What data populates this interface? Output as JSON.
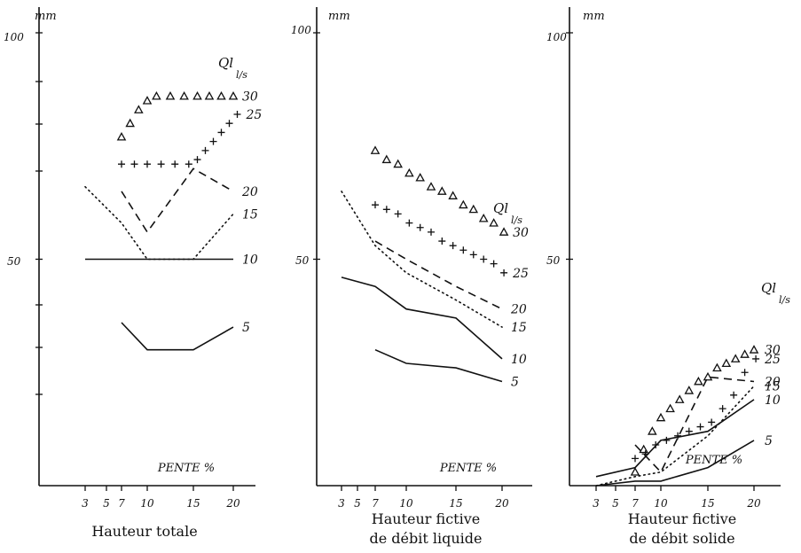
{
  "chart_data": [
    {
      "type": "line",
      "title": "Hauteur totale",
      "ylabel": "mm",
      "xlabel": "PENTE %",
      "legend_title": "Ql l/s",
      "x_ticks": [
        3,
        5,
        7,
        10,
        15,
        20
      ],
      "ylim": [
        0,
        100
      ],
      "y_tick_labels": [
        "100",
        "50"
      ],
      "y_tick_values": [
        100,
        50
      ],
      "series": [
        {
          "name": "30",
          "marker": "triangle",
          "style": "markers",
          "x": [
            7,
            8,
            9,
            10,
            11,
            12.5,
            14,
            15.5,
            17,
            18.5,
            20
          ],
          "y": [
            77,
            80,
            83,
            85,
            86,
            86,
            86,
            86,
            86,
            86,
            86
          ]
        },
        {
          "name": "25",
          "marker": "plus",
          "style": "markers",
          "x": [
            7,
            8.5,
            10,
            11.5,
            13,
            14.5,
            15.5,
            16.5,
            17.5,
            18.5,
            19.5,
            20.5
          ],
          "y": [
            71,
            71,
            71,
            71,
            71,
            71,
            72,
            74,
            76,
            78,
            80,
            82
          ]
        },
        {
          "name": "20",
          "style": "dashed",
          "x": [
            7,
            10,
            15,
            20
          ],
          "y": [
            65,
            56,
            70,
            65
          ]
        },
        {
          "name": "15",
          "style": "dotted",
          "x": [
            3,
            7,
            10,
            15,
            20
          ],
          "y": [
            66,
            58,
            50,
            50,
            60
          ]
        },
        {
          "name": "10",
          "style": "solid",
          "x": [
            3,
            7,
            10,
            15,
            20
          ],
          "y": [
            50,
            50,
            50,
            50,
            50
          ]
        },
        {
          "name": "5",
          "style": "solid",
          "x": [
            7,
            10,
            15,
            20
          ],
          "y": [
            36,
            30,
            30,
            35
          ]
        }
      ]
    },
    {
      "type": "line",
      "title": "Hauteur fictive de débit liquide",
      "ylabel": "mm",
      "xlabel": "PENTE %",
      "legend_title": "Ql l/s",
      "x_ticks": [
        3,
        5,
        7,
        10,
        15,
        20
      ],
      "ylim": [
        0,
        100
      ],
      "y_tick_labels": [
        "100",
        "50"
      ],
      "y_tick_values": [
        100,
        50
      ],
      "series": [
        {
          "name": "30",
          "marker": "triangle",
          "style": "markers",
          "x": [
            7,
            8.1,
            9.2,
            10.3,
            11.4,
            12.5,
            13.6,
            14.7,
            15.8,
            16.9,
            18,
            19.1,
            20.2
          ],
          "y": [
            74,
            72,
            71,
            69,
            68,
            66,
            65,
            64,
            62,
            61,
            59,
            58,
            56
          ]
        },
        {
          "name": "25",
          "marker": "plus",
          "style": "markers",
          "x": [
            7,
            8.1,
            9.2,
            10.3,
            11.4,
            12.5,
            13.6,
            14.7,
            15.8,
            16.9,
            18,
            19.1,
            20.2
          ],
          "y": [
            62,
            61,
            60,
            58,
            57,
            56,
            54,
            53,
            52,
            51,
            50,
            49,
            47
          ]
        },
        {
          "name": "20",
          "style": "dashed",
          "x": [
            7,
            10,
            15,
            20
          ],
          "y": [
            54,
            50,
            44,
            39
          ]
        },
        {
          "name": "15",
          "style": "dotted",
          "x": [
            3,
            7,
            10,
            15,
            20
          ],
          "y": [
            65,
            53,
            47,
            41,
            35
          ]
        },
        {
          "name": "10",
          "style": "solid",
          "x": [
            3,
            7,
            10,
            15,
            20
          ],
          "y": [
            46,
            44,
            39,
            37,
            28
          ]
        },
        {
          "name": "5",
          "style": "solid",
          "x": [
            7,
            10,
            15,
            20
          ],
          "y": [
            30,
            27,
            26,
            23
          ]
        }
      ]
    },
    {
      "type": "line",
      "title": "Hauteur fictive de débit solide",
      "ylabel": "mm",
      "xlabel": "PENTE %",
      "legend_title": "Ql l/s",
      "x_ticks": [
        3,
        5,
        7,
        10,
        15,
        20
      ],
      "ylim": [
        0,
        100
      ],
      "y_tick_labels": [
        "100",
        "50"
      ],
      "y_tick_values": [
        100,
        50
      ],
      "series": [
        {
          "name": "30",
          "marker": "triangle",
          "style": "markers",
          "x": [
            7,
            8,
            9,
            10,
            11,
            12,
            13,
            14,
            15,
            16,
            17,
            18,
            19,
            20
          ],
          "y": [
            3,
            8,
            12,
            15,
            17,
            19,
            21,
            23,
            24,
            26,
            27,
            28,
            29,
            30
          ]
        },
        {
          "name": "25",
          "marker": "plus",
          "style": "markers",
          "x": [
            7,
            8.2,
            9.4,
            10.6,
            11.8,
            13,
            14.2,
            15.4,
            16.6,
            17.8,
            19,
            20.2
          ],
          "y": [
            6,
            7,
            9,
            10,
            11,
            12,
            13,
            14,
            17,
            20,
            25,
            28
          ]
        },
        {
          "name": "20",
          "style": "dashed",
          "x": [
            7,
            10,
            15,
            20
          ],
          "y": [
            9,
            3,
            24,
            23
          ]
        },
        {
          "name": "15",
          "style": "dotted",
          "x": [
            3,
            7,
            10,
            15,
            20
          ],
          "y": [
            0,
            2,
            3,
            11,
            22
          ]
        },
        {
          "name": "10",
          "style": "solid",
          "x": [
            3,
            7,
            10,
            15,
            20
          ],
          "y": [
            2,
            4,
            10,
            12,
            19
          ]
        },
        {
          "name": "5",
          "style": "solid",
          "x": [
            3,
            7,
            10,
            15,
            20
          ],
          "y": [
            0,
            1,
            1,
            4,
            10
          ]
        }
      ]
    }
  ]
}
